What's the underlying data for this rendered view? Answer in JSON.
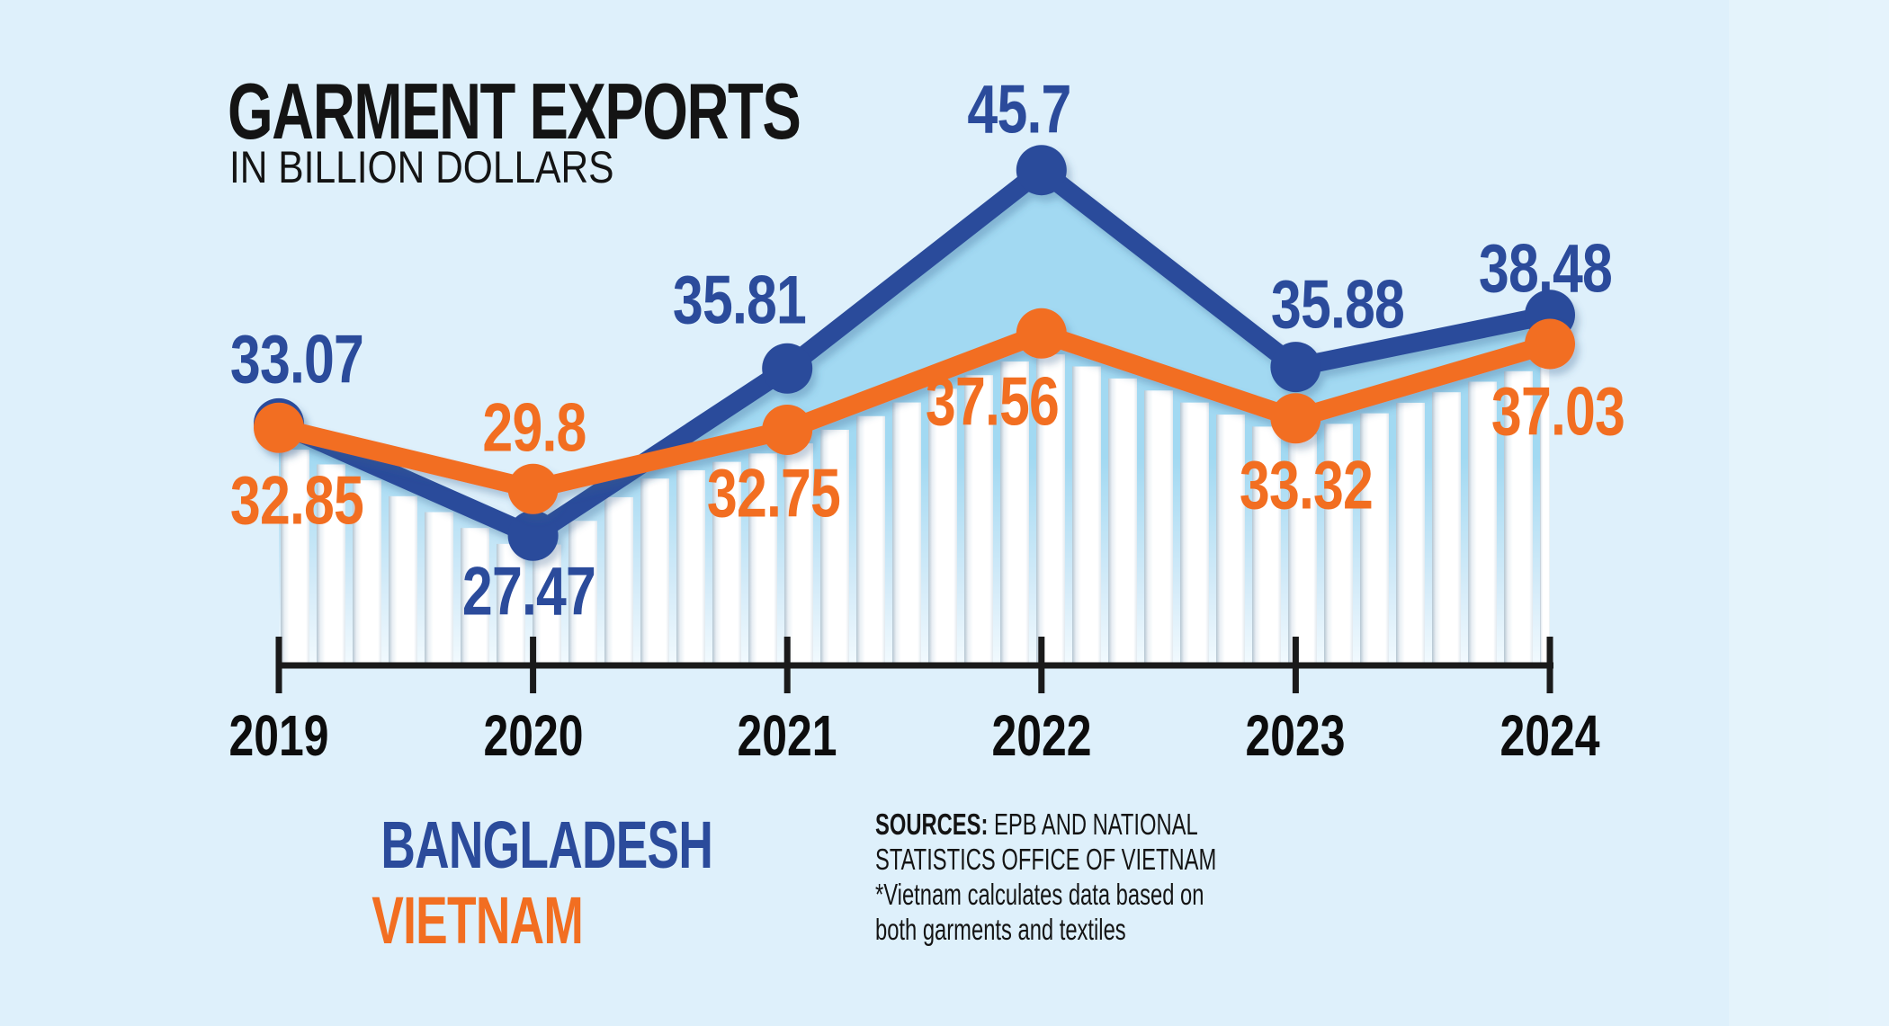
{
  "title": {
    "main": "GARMENT EXPORTS",
    "subtitle": "IN BILLION DOLLARS"
  },
  "legend": {
    "items": [
      {
        "label": "BANGLADESH",
        "color": "#2b4b9b"
      },
      {
        "label": "VIETNAM",
        "color": "#f26e21"
      }
    ]
  },
  "sources": {
    "prefix": "SOURCES:",
    "line1": " EPB AND NATIONAL",
    "line2": "STATISTICS OFFICE OF VIETNAM",
    "line3": "*Vietnam calculates data based on",
    "line4": "both garments and textiles"
  },
  "colors": {
    "background": "#def0fb",
    "area_fill": "#a2d9f2",
    "bar_fill": "#ffffff",
    "bar_edge": "#b6c6d2",
    "axis": "#1a1a1a",
    "title_text": "#141414",
    "bangladesh": "#2b4b9b",
    "vietnam": "#f26e21"
  },
  "chart_data": {
    "type": "line",
    "title": "GARMENT EXPORTS",
    "subtitle": "IN BILLION DOLLARS",
    "unit": "billion dollars",
    "categories": [
      "2019",
      "2020",
      "2021",
      "2022",
      "2023",
      "2024"
    ],
    "series": [
      {
        "name": "BANGLADESH",
        "color": "#2b4b9b",
        "values": [
          33.07,
          27.47,
          35.81,
          45.7,
          35.88,
          38.48
        ],
        "point_labels": [
          "33.07",
          "27.47",
          "35.81",
          "45.7",
          "35.88",
          "38.48"
        ]
      },
      {
        "name": "VIETNAM",
        "color": "#f26e21",
        "values": [
          32.85,
          29.8,
          32.75,
          37.56,
          33.32,
          37.03
        ],
        "point_labels": [
          "32.85",
          "29.8",
          "32.75",
          "37.56",
          "33.32",
          "37.03"
        ]
      }
    ],
    "xlabel": "",
    "ylabel": "IN BILLION DOLLARS",
    "ylim": [
      21,
      47
    ],
    "grid": false,
    "legend_position": "bottom-left",
    "area_fill_under": "BANGLADESH",
    "background_texture": "white picket bars under lower line envelope"
  }
}
